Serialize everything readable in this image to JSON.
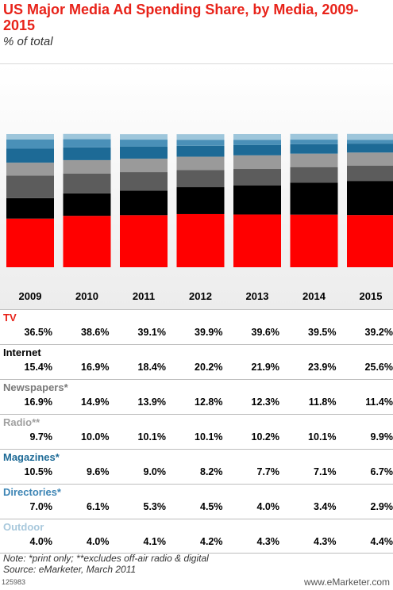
{
  "title": "US Major Media Ad Spending Share, by Media, 2009-2015",
  "subtitle": "% of total",
  "note": "Note: *print only; **excludes off-air radio & digital",
  "source": "Source: eMarketer, March 2011",
  "footer_id": "125983",
  "brand": "www.eMarketer.com",
  "chart_data": {
    "type": "bar",
    "stacked": true,
    "categories": [
      "2009",
      "2010",
      "2011",
      "2012",
      "2013",
      "2014",
      "2015"
    ],
    "ylim": [
      0,
      100
    ],
    "grid": false,
    "series": [
      {
        "name": "TV",
        "color": "#ff0000",
        "label_color": "#e8231a",
        "labels": [
          "36.5%",
          "38.6%",
          "39.1%",
          "39.9%",
          "39.6%",
          "39.5%",
          "39.2%"
        ],
        "values": [
          36.5,
          38.6,
          39.1,
          39.9,
          39.6,
          39.5,
          39.2
        ]
      },
      {
        "name": "Internet",
        "color": "#000000",
        "label_color": "#000000",
        "labels": [
          "15.4%",
          "16.9%",
          "18.4%",
          "20.2%",
          "21.9%",
          "23.9%",
          "25.6%"
        ],
        "values": [
          15.4,
          16.9,
          18.4,
          20.2,
          21.9,
          23.9,
          25.6
        ]
      },
      {
        "name": "Newspapers*",
        "color": "#5c5c5c",
        "label_color": "#7a7a7a",
        "labels": [
          "16.9%",
          "14.9%",
          "13.9%",
          "12.8%",
          "12.3%",
          "11.8%",
          "11.4%"
        ],
        "values": [
          16.9,
          14.9,
          13.9,
          12.8,
          12.3,
          11.8,
          11.4
        ]
      },
      {
        "name": "Radio**",
        "color": "#9a9a9a",
        "label_color": "#a0a0a0",
        "labels": [
          "9.7%",
          "10.0%",
          "10.1%",
          "10.1%",
          "10.2%",
          "10.1%",
          "9.9%"
        ],
        "values": [
          9.7,
          10.0,
          10.1,
          10.1,
          10.2,
          10.1,
          9.9
        ]
      },
      {
        "name": "Magazines*",
        "color": "#1d6a96",
        "label_color": "#1d6a96",
        "labels": [
          "10.5%",
          "9.6%",
          "9.0%",
          "8.2%",
          "7.7%",
          "7.1%",
          "6.7%"
        ],
        "values": [
          10.5,
          9.6,
          9.0,
          8.2,
          7.7,
          7.1,
          6.7
        ]
      },
      {
        "name": "Directories*",
        "color": "#4a90b8",
        "label_color": "#3d85b5",
        "labels": [
          "7.0%",
          "6.1%",
          "5.3%",
          "4.5%",
          "4.0%",
          "3.4%",
          "2.9%"
        ],
        "values": [
          7.0,
          6.1,
          5.3,
          4.5,
          4.0,
          3.4,
          2.9
        ]
      },
      {
        "name": "Outdoor",
        "color": "#9ec6db",
        "label_color": "#a8c8dc",
        "labels": [
          "4.0%",
          "4.0%",
          "4.1%",
          "4.2%",
          "4.3%",
          "4.3%",
          "4.4%"
        ],
        "values": [
          4.0,
          4.0,
          4.1,
          4.2,
          4.3,
          4.3,
          4.4
        ]
      }
    ]
  }
}
